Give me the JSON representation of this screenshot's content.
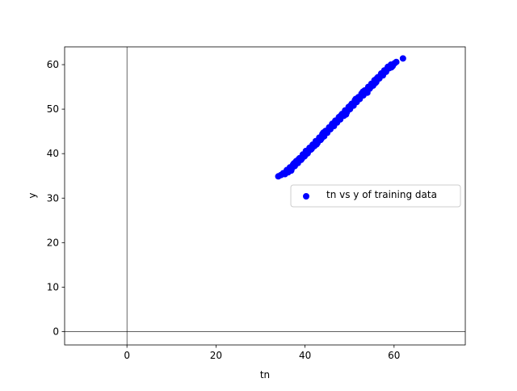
{
  "chart_data": {
    "type": "scatter",
    "title": "",
    "xlabel": "tn",
    "ylabel": "y",
    "xlim": [
      -14,
      76
    ],
    "ylim": [
      -3,
      64
    ],
    "xticks": [
      0,
      20,
      40,
      60
    ],
    "yticks": [
      0,
      10,
      20,
      30,
      40,
      50,
      60
    ],
    "xtick_labels": [
      "0",
      "20",
      "40",
      "60"
    ],
    "ytick_labels": [
      "0",
      "10",
      "20",
      "30",
      "40",
      "50",
      "60"
    ],
    "grid": false,
    "reference_lines": {
      "x": 0,
      "y": 0
    },
    "legend": {
      "position": "center-right",
      "entries": [
        "tn vs y of training data"
      ]
    },
    "series": [
      {
        "name": "tn vs y of training data",
        "color": "#0000ff",
        "marker": "circle",
        "points": [
          [
            34.0,
            34.9
          ],
          [
            34.6,
            35.2
          ],
          [
            35.1,
            35.6
          ],
          [
            35.5,
            35.4
          ],
          [
            35.9,
            36.3
          ],
          [
            36.2,
            35.8
          ],
          [
            36.6,
            36.9
          ],
          [
            37.0,
            36.6
          ],
          [
            37.3,
            37.5
          ],
          [
            37.7,
            37.2
          ],
          [
            38.0,
            38.3
          ],
          [
            38.4,
            37.9
          ],
          [
            38.8,
            39.0
          ],
          [
            39.1,
            38.6
          ],
          [
            39.5,
            39.8
          ],
          [
            39.9,
            39.4
          ],
          [
            40.2,
            40.6
          ],
          [
            40.6,
            40.1
          ],
          [
            41.0,
            41.3
          ],
          [
            41.3,
            40.9
          ],
          [
            41.7,
            42.0
          ],
          [
            42.1,
            41.7
          ],
          [
            42.4,
            42.8
          ],
          [
            42.8,
            42.4
          ],
          [
            43.2,
            43.6
          ],
          [
            43.5,
            43.1
          ],
          [
            43.9,
            44.4
          ],
          [
            44.3,
            43.9
          ],
          [
            44.6,
            45.1
          ],
          [
            45.0,
            44.7
          ],
          [
            45.4,
            45.9
          ],
          [
            45.7,
            45.5
          ],
          [
            46.1,
            46.7
          ],
          [
            46.5,
            46.2
          ],
          [
            46.8,
            47.4
          ],
          [
            47.2,
            47.0
          ],
          [
            47.6,
            48.2
          ],
          [
            47.9,
            47.7
          ],
          [
            48.3,
            48.9
          ],
          [
            48.7,
            48.5
          ],
          [
            49.0,
            49.7
          ],
          [
            49.4,
            49.3
          ],
          [
            49.8,
            50.5
          ],
          [
            50.1,
            50.0
          ],
          [
            50.5,
            51.2
          ],
          [
            50.9,
            50.8
          ],
          [
            51.2,
            52.0
          ],
          [
            51.6,
            51.6
          ],
          [
            52.0,
            52.7
          ],
          [
            52.3,
            52.3
          ],
          [
            52.7,
            53.5
          ],
          [
            53.1,
            53.1
          ],
          [
            53.4,
            54.2
          ],
          [
            53.8,
            53.8
          ],
          [
            54.2,
            55.0
          ],
          [
            54.5,
            54.6
          ],
          [
            54.9,
            55.7
          ],
          [
            55.3,
            55.3
          ],
          [
            55.6,
            56.5
          ],
          [
            56.0,
            56.1
          ],
          [
            56.4,
            57.2
          ],
          [
            56.7,
            56.9
          ],
          [
            57.1,
            58.0
          ],
          [
            57.5,
            57.6
          ],
          [
            57.8,
            58.7
          ],
          [
            58.2,
            58.4
          ],
          [
            58.6,
            59.5
          ],
          [
            58.9,
            59.2
          ],
          [
            59.3,
            60.0
          ],
          [
            59.7,
            59.7
          ],
          [
            60.1,
            60.3
          ],
          [
            60.5,
            60.6
          ],
          [
            62.0,
            61.4
          ],
          [
            36.9,
            36.2
          ],
          [
            38.6,
            38.8
          ],
          [
            40.4,
            40.0
          ],
          [
            42.6,
            42.1
          ],
          [
            44.1,
            44.7
          ],
          [
            45.9,
            46.1
          ],
          [
            47.4,
            47.6
          ],
          [
            49.2,
            48.8
          ],
          [
            51.4,
            52.3
          ],
          [
            53.0,
            53.9
          ],
          [
            54.7,
            54.9
          ],
          [
            56.2,
            57.0
          ],
          [
            57.9,
            58.3
          ],
          [
            59.4,
            59.4
          ],
          [
            39.3,
            38.9
          ],
          [
            43.7,
            43.4
          ],
          [
            48.1,
            48.6
          ],
          [
            52.5,
            52.9
          ],
          [
            55.8,
            55.9
          ],
          [
            37.5,
            37.8
          ],
          [
            41.5,
            41.1
          ],
          [
            46.3,
            46.5
          ],
          [
            50.3,
            50.9
          ],
          [
            54.0,
            53.7
          ],
          [
            58.4,
            59.0
          ]
        ]
      }
    ]
  }
}
